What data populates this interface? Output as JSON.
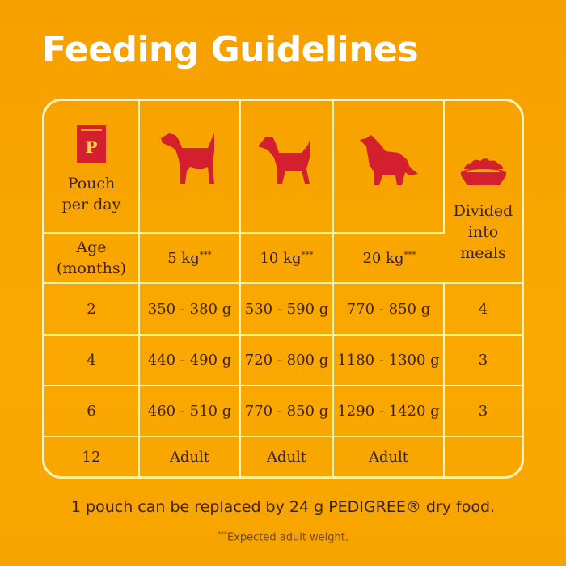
{
  "title": "Feeding Guidelines",
  "colors": {
    "background": "#F9A500",
    "icon": "#D41F2E",
    "lines": "#FFF1B8",
    "text": "#3e2410"
  },
  "header": {
    "pouch_label_1": "Pouch",
    "pouch_label_2": "per day",
    "pouch_icon_letter": "P",
    "age_label_1": "Age",
    "age_label_2": "(months)",
    "weights": [
      {
        "value": "5 kg",
        "mark": "***",
        "icon": "small-dog-icon"
      },
      {
        "value": "10 kg",
        "mark": "***",
        "icon": "medium-dog-icon"
      },
      {
        "value": "20 kg",
        "mark": "***",
        "icon": "large-dog-icon"
      }
    ],
    "meals_label_1": "Divided",
    "meals_label_2": "into",
    "meals_label_3": "meals"
  },
  "rows": [
    {
      "age": "2",
      "w5": "350 - 380 g",
      "w10": "530 - 590 g",
      "w20": "770 - 850 g",
      "meals": "4"
    },
    {
      "age": "4",
      "w5": "440 - 490 g",
      "w10": "720 - 800 g",
      "w20": "1180 - 1300 g",
      "meals": "3"
    },
    {
      "age": "6",
      "w5": "460 - 510 g",
      "w10": "770 - 850 g",
      "w20": "1290 - 1420 g",
      "meals": "3"
    },
    {
      "age": "12",
      "w5": "Adult",
      "w10": "Adult",
      "w20": "Adult",
      "meals": ""
    }
  ],
  "footer": "1 pouch can be replaced by 24 g PEDIGREE® dry food.",
  "note_mark": "***",
  "note": "Expected adult weight."
}
